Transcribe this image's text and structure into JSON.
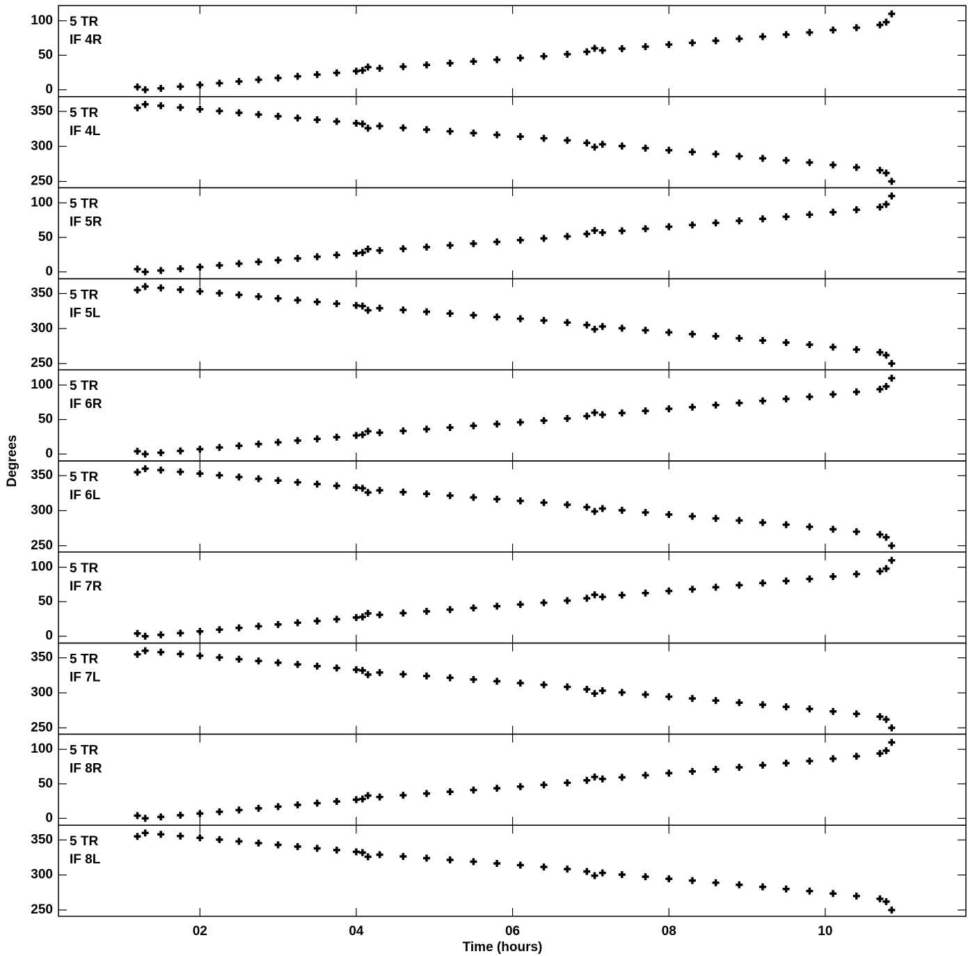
{
  "chart_data": [
    {
      "type": "scatter",
      "annotations": [
        "5 TR",
        "IF 4R"
      ],
      "xlim": [
        0.19,
        11.8
      ],
      "xticks": [
        2,
        4,
        6,
        8,
        10
      ],
      "ylim": [
        -10,
        122
      ],
      "yticks": [
        0,
        50,
        100
      ],
      "color": "#000000",
      "x": [
        1.2,
        1.3,
        1.5,
        1.75,
        2.0,
        2.25,
        2.5,
        2.75,
        3.0,
        3.25,
        3.5,
        3.75,
        4.0,
        4.08,
        4.15,
        4.3,
        4.6,
        4.9,
        5.2,
        5.5,
        5.8,
        6.1,
        6.4,
        6.7,
        6.95,
        7.05,
        7.15,
        7.4,
        7.7,
        8.0,
        8.3,
        8.6,
        8.9,
        9.2,
        9.5,
        9.8,
        10.1,
        10.4,
        10.7,
        10.78,
        10.85
      ],
      "values": [
        4,
        0,
        2,
        4.5,
        7,
        9.5,
        12,
        14.5,
        17,
        19.5,
        22,
        24.5,
        27,
        28,
        33,
        31,
        33.5,
        36,
        38.5,
        41,
        43.5,
        46,
        48.5,
        51.5,
        55,
        60,
        57,
        59.5,
        62.5,
        65.5,
        68,
        71,
        74,
        77,
        80,
        83,
        86.5,
        90,
        94,
        98,
        110
      ]
    },
    {
      "type": "scatter",
      "annotations": [
        "5 TR",
        "IF 4L"
      ],
      "xlim": [
        0.19,
        11.8
      ],
      "xticks": [
        2,
        4,
        6,
        8,
        10
      ],
      "ylim": [
        241,
        371
      ],
      "yticks": [
        250,
        300,
        350
      ],
      "color": "#000000",
      "x": [
        1.2,
        1.3,
        1.5,
        1.75,
        2.0,
        2.25,
        2.5,
        2.75,
        3.0,
        3.25,
        3.5,
        3.75,
        4.0,
        4.08,
        4.15,
        4.3,
        4.6,
        4.9,
        5.2,
        5.5,
        5.8,
        6.1,
        6.4,
        6.7,
        6.95,
        7.05,
        7.15,
        7.4,
        7.7,
        8.0,
        8.3,
        8.6,
        8.9,
        9.2,
        9.5,
        9.8,
        10.1,
        10.4,
        10.7,
        10.78,
        10.85
      ],
      "values": [
        355,
        360,
        358,
        355.5,
        353,
        350.5,
        348,
        345.5,
        343,
        340.5,
        338,
        335.5,
        333,
        332,
        326,
        329,
        326.5,
        324,
        321.5,
        319,
        316.5,
        314,
        311.5,
        308.5,
        305,
        299,
        303,
        300.5,
        297.5,
        294.5,
        292,
        289,
        286,
        283,
        280,
        277,
        273.5,
        270,
        266,
        262,
        250
      ]
    },
    {
      "type": "scatter",
      "annotations": [
        "5 TR",
        "IF 5R"
      ],
      "xlim": [
        0.19,
        11.8
      ],
      "xticks": [
        2,
        4,
        6,
        8,
        10
      ],
      "ylim": [
        -10,
        122
      ],
      "yticks": [
        0,
        50,
        100
      ],
      "color": "#000000",
      "x": [
        1.2,
        1.3,
        1.5,
        1.75,
        2.0,
        2.25,
        2.5,
        2.75,
        3.0,
        3.25,
        3.5,
        3.75,
        4.0,
        4.08,
        4.15,
        4.3,
        4.6,
        4.9,
        5.2,
        5.5,
        5.8,
        6.1,
        6.4,
        6.7,
        6.95,
        7.05,
        7.15,
        7.4,
        7.7,
        8.0,
        8.3,
        8.6,
        8.9,
        9.2,
        9.5,
        9.8,
        10.1,
        10.4,
        10.7,
        10.78,
        10.85
      ],
      "values": [
        4,
        0,
        2,
        4.5,
        7,
        9.5,
        12,
        14.5,
        17,
        19.5,
        22,
        24.5,
        27,
        28,
        33,
        31,
        33.5,
        36,
        38.5,
        41,
        43.5,
        46,
        48.5,
        51.5,
        55,
        60,
        57,
        59.5,
        62.5,
        65.5,
        68,
        71,
        74,
        77,
        80,
        83,
        86.5,
        90,
        94,
        98,
        110
      ]
    },
    {
      "type": "scatter",
      "annotations": [
        "5 TR",
        "IF 5L"
      ],
      "xlim": [
        0.19,
        11.8
      ],
      "xticks": [
        2,
        4,
        6,
        8,
        10
      ],
      "ylim": [
        241,
        371
      ],
      "yticks": [
        250,
        300,
        350
      ],
      "color": "#000000",
      "x": [
        1.2,
        1.3,
        1.5,
        1.75,
        2.0,
        2.25,
        2.5,
        2.75,
        3.0,
        3.25,
        3.5,
        3.75,
        4.0,
        4.08,
        4.15,
        4.3,
        4.6,
        4.9,
        5.2,
        5.5,
        5.8,
        6.1,
        6.4,
        6.7,
        6.95,
        7.05,
        7.15,
        7.4,
        7.7,
        8.0,
        8.3,
        8.6,
        8.9,
        9.2,
        9.5,
        9.8,
        10.1,
        10.4,
        10.7,
        10.78,
        10.85
      ],
      "values": [
        355,
        360,
        358,
        355.5,
        353,
        350.5,
        348,
        345.5,
        343,
        340.5,
        338,
        335.5,
        333,
        332,
        326,
        329,
        326.5,
        324,
        321.5,
        319,
        316.5,
        314,
        311.5,
        308.5,
        305,
        299,
        303,
        300.5,
        297.5,
        294.5,
        292,
        289,
        286,
        283,
        280,
        277,
        273.5,
        270,
        266,
        262,
        250
      ]
    },
    {
      "type": "scatter",
      "annotations": [
        "5 TR",
        "IF 6R"
      ],
      "xlim": [
        0.19,
        11.8
      ],
      "xticks": [
        2,
        4,
        6,
        8,
        10
      ],
      "ylim": [
        -10,
        122
      ],
      "yticks": [
        0,
        50,
        100
      ],
      "color": "#000000",
      "x": [
        1.2,
        1.3,
        1.5,
        1.75,
        2.0,
        2.25,
        2.5,
        2.75,
        3.0,
        3.25,
        3.5,
        3.75,
        4.0,
        4.08,
        4.15,
        4.3,
        4.6,
        4.9,
        5.2,
        5.5,
        5.8,
        6.1,
        6.4,
        6.7,
        6.95,
        7.05,
        7.15,
        7.4,
        7.7,
        8.0,
        8.3,
        8.6,
        8.9,
        9.2,
        9.5,
        9.8,
        10.1,
        10.4,
        10.7,
        10.78,
        10.85
      ],
      "values": [
        4,
        0,
        2,
        4.5,
        7,
        9.5,
        12,
        14.5,
        17,
        19.5,
        22,
        24.5,
        27,
        28,
        33,
        31,
        33.5,
        36,
        38.5,
        41,
        43.5,
        46,
        48.5,
        51.5,
        55,
        60,
        57,
        59.5,
        62.5,
        65.5,
        68,
        71,
        74,
        77,
        80,
        83,
        86.5,
        90,
        94,
        98,
        110
      ]
    },
    {
      "type": "scatter",
      "annotations": [
        "5 TR",
        "IF 6L"
      ],
      "ylabel": "Degrees",
      "xlim": [
        0.19,
        11.8
      ],
      "xticks": [
        2,
        4,
        6,
        8,
        10
      ],
      "ylim": [
        241,
        371
      ],
      "yticks": [
        250,
        300,
        350
      ],
      "color": "#000000",
      "x": [
        1.2,
        1.3,
        1.5,
        1.75,
        2.0,
        2.25,
        2.5,
        2.75,
        3.0,
        3.25,
        3.5,
        3.75,
        4.0,
        4.08,
        4.15,
        4.3,
        4.6,
        4.9,
        5.2,
        5.5,
        5.8,
        6.1,
        6.4,
        6.7,
        6.95,
        7.05,
        7.15,
        7.4,
        7.7,
        8.0,
        8.3,
        8.6,
        8.9,
        9.2,
        9.5,
        9.8,
        10.1,
        10.4,
        10.7,
        10.78,
        10.85
      ],
      "values": [
        355,
        360,
        358,
        355.5,
        353,
        350.5,
        348,
        345.5,
        343,
        340.5,
        338,
        335.5,
        333,
        332,
        326,
        329,
        326.5,
        324,
        321.5,
        319,
        316.5,
        314,
        311.5,
        308.5,
        305,
        299,
        303,
        300.5,
        297.5,
        294.5,
        292,
        289,
        286,
        283,
        280,
        277,
        273.5,
        270,
        266,
        262,
        250
      ]
    },
    {
      "type": "scatter",
      "annotations": [
        "5 TR",
        "IF 7R"
      ],
      "xlim": [
        0.19,
        11.8
      ],
      "xticks": [
        2,
        4,
        6,
        8,
        10
      ],
      "ylim": [
        -10,
        122
      ],
      "yticks": [
        0,
        50,
        100
      ],
      "color": "#000000",
      "x": [
        1.2,
        1.3,
        1.5,
        1.75,
        2.0,
        2.25,
        2.5,
        2.75,
        3.0,
        3.25,
        3.5,
        3.75,
        4.0,
        4.08,
        4.15,
        4.3,
        4.6,
        4.9,
        5.2,
        5.5,
        5.8,
        6.1,
        6.4,
        6.7,
        6.95,
        7.05,
        7.15,
        7.4,
        7.7,
        8.0,
        8.3,
        8.6,
        8.9,
        9.2,
        9.5,
        9.8,
        10.1,
        10.4,
        10.7,
        10.78,
        10.85
      ],
      "values": [
        4,
        0,
        2,
        4.5,
        7,
        9.5,
        12,
        14.5,
        17,
        19.5,
        22,
        24.5,
        27,
        28,
        33,
        31,
        33.5,
        36,
        38.5,
        41,
        43.5,
        46,
        48.5,
        51.5,
        55,
        60,
        57,
        59.5,
        62.5,
        65.5,
        68,
        71,
        74,
        77,
        80,
        83,
        86.5,
        90,
        94,
        98,
        110
      ]
    },
    {
      "type": "scatter",
      "annotations": [
        "5 TR",
        "IF 7L"
      ],
      "xlim": [
        0.19,
        11.8
      ],
      "xticks": [
        2,
        4,
        6,
        8,
        10
      ],
      "ylim": [
        241,
        371
      ],
      "yticks": [
        250,
        300,
        350
      ],
      "color": "#000000",
      "x": [
        1.2,
        1.3,
        1.5,
        1.75,
        2.0,
        2.25,
        2.5,
        2.75,
        3.0,
        3.25,
        3.5,
        3.75,
        4.0,
        4.08,
        4.15,
        4.3,
        4.6,
        4.9,
        5.2,
        5.5,
        5.8,
        6.1,
        6.4,
        6.7,
        6.95,
        7.05,
        7.15,
        7.4,
        7.7,
        8.0,
        8.3,
        8.6,
        8.9,
        9.2,
        9.5,
        9.8,
        10.1,
        10.4,
        10.7,
        10.78,
        10.85
      ],
      "values": [
        355,
        360,
        358,
        355.5,
        353,
        350.5,
        348,
        345.5,
        343,
        340.5,
        338,
        335.5,
        333,
        332,
        326,
        329,
        326.5,
        324,
        321.5,
        319,
        316.5,
        314,
        311.5,
        308.5,
        305,
        299,
        303,
        300.5,
        297.5,
        294.5,
        292,
        289,
        286,
        283,
        280,
        277,
        273.5,
        270,
        266,
        262,
        250
      ]
    },
    {
      "type": "scatter",
      "annotations": [
        "5 TR",
        "IF 8R"
      ],
      "xlim": [
        0.19,
        11.8
      ],
      "xticks": [
        2,
        4,
        6,
        8,
        10
      ],
      "ylim": [
        -10,
        122
      ],
      "yticks": [
        0,
        50,
        100
      ],
      "color": "#000000",
      "x": [
        1.2,
        1.3,
        1.5,
        1.75,
        2.0,
        2.25,
        2.5,
        2.75,
        3.0,
        3.25,
        3.5,
        3.75,
        4.0,
        4.08,
        4.15,
        4.3,
        4.6,
        4.9,
        5.2,
        5.5,
        5.8,
        6.1,
        6.4,
        6.7,
        6.95,
        7.05,
        7.15,
        7.4,
        7.7,
        8.0,
        8.3,
        8.6,
        8.9,
        9.2,
        9.5,
        9.8,
        10.1,
        10.4,
        10.7,
        10.78,
        10.85
      ],
      "values": [
        4,
        0,
        2,
        4.5,
        7,
        9.5,
        12,
        14.5,
        17,
        19.5,
        22,
        24.5,
        27,
        28,
        33,
        31,
        33.5,
        36,
        38.5,
        41,
        43.5,
        46,
        48.5,
        51.5,
        55,
        60,
        57,
        59.5,
        62.5,
        65.5,
        68,
        71,
        74,
        77,
        80,
        83,
        86.5,
        90,
        94,
        98,
        110
      ]
    },
    {
      "type": "scatter",
      "annotations": [
        "5 TR",
        "IF 8L"
      ],
      "xlabel": "Time (hours)",
      "xlim": [
        0.19,
        11.8
      ],
      "xticks": [
        {
          "value": 2,
          "label": "02"
        },
        {
          "value": 4,
          "label": "04"
        },
        {
          "value": 6,
          "label": "06"
        },
        {
          "value": 8,
          "label": "08"
        },
        {
          "value": 10,
          "label": "10"
        }
      ],
      "ylim": [
        241,
        371
      ],
      "yticks": [
        250,
        300,
        350
      ],
      "color": "#000000",
      "x": [
        1.2,
        1.3,
        1.5,
        1.75,
        2.0,
        2.25,
        2.5,
        2.75,
        3.0,
        3.25,
        3.5,
        3.75,
        4.0,
        4.08,
        4.15,
        4.3,
        4.6,
        4.9,
        5.2,
        5.5,
        5.8,
        6.1,
        6.4,
        6.7,
        6.95,
        7.05,
        7.15,
        7.4,
        7.7,
        8.0,
        8.3,
        8.6,
        8.9,
        9.2,
        9.5,
        9.8,
        10.1,
        10.4,
        10.7,
        10.78,
        10.85
      ],
      "values": [
        355,
        360,
        358,
        355.5,
        353,
        350.5,
        348,
        345.5,
        343,
        340.5,
        338,
        335.5,
        333,
        332,
        326,
        329,
        326.5,
        324,
        321.5,
        319,
        316.5,
        314,
        311.5,
        308.5,
        305,
        299,
        303,
        300.5,
        297.5,
        294.5,
        292,
        289,
        286,
        283,
        280,
        277,
        273.5,
        270,
        266,
        262,
        250
      ]
    }
  ]
}
